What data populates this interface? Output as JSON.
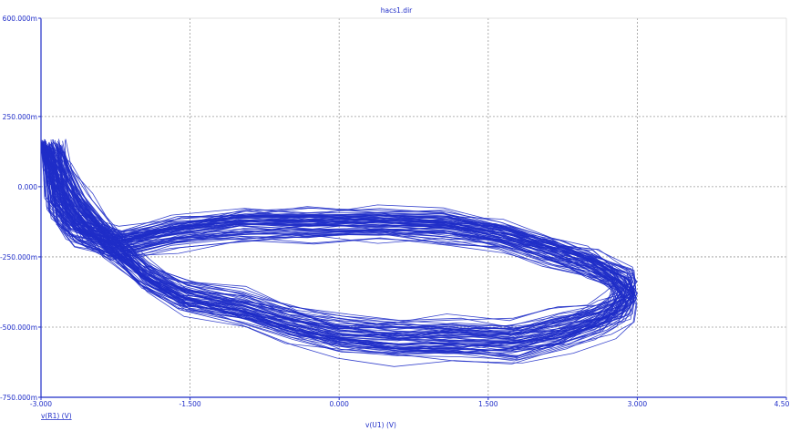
{
  "chart_data": {
    "type": "line",
    "title": "hacs1.dir",
    "xlabel": "v(U1) (V)",
    "ylabel": "v(R1) (V)",
    "xlim": [
      -3.0,
      4.5
    ],
    "ylim": [
      -0.75,
      0.6
    ],
    "x_ticks": [
      "-3.000",
      "-1.500",
      "0.000",
      "1.500",
      "3.000",
      "4.50"
    ],
    "y_ticks": [
      "600.000m",
      "250.000m",
      "0.000",
      "-250.000m",
      "-500.000m",
      "-750.000m"
    ],
    "grid": true,
    "colors": {
      "trace": "#1f2dc8",
      "axis": "#1f2dc8",
      "grid": "#9a9a9a"
    },
    "series": [
      {
        "x": [
          -3.0,
          -2.9,
          -2.7,
          -2.4,
          -2.0,
          -1.6,
          -1.0,
          -0.5,
          0.0,
          0.6,
          1.2,
          1.8,
          2.3,
          2.7,
          2.9,
          3.0,
          2.9,
          2.6,
          2.2,
          1.7,
          1.1,
          0.4,
          -0.3,
          -1.0,
          -1.7,
          -2.3,
          -2.7,
          -2.9,
          -3.0
        ],
        "y": [
          0.16,
          0.07,
          -0.05,
          -0.18,
          -0.32,
          -0.4,
          -0.44,
          -0.5,
          -0.54,
          -0.56,
          -0.56,
          -0.57,
          -0.53,
          -0.48,
          -0.44,
          -0.38,
          -0.33,
          -0.27,
          -0.22,
          -0.17,
          -0.13,
          -0.12,
          -0.12,
          -0.12,
          -0.15,
          -0.2,
          -0.15,
          -0.05,
          0.16
        ]
      }
    ]
  }
}
